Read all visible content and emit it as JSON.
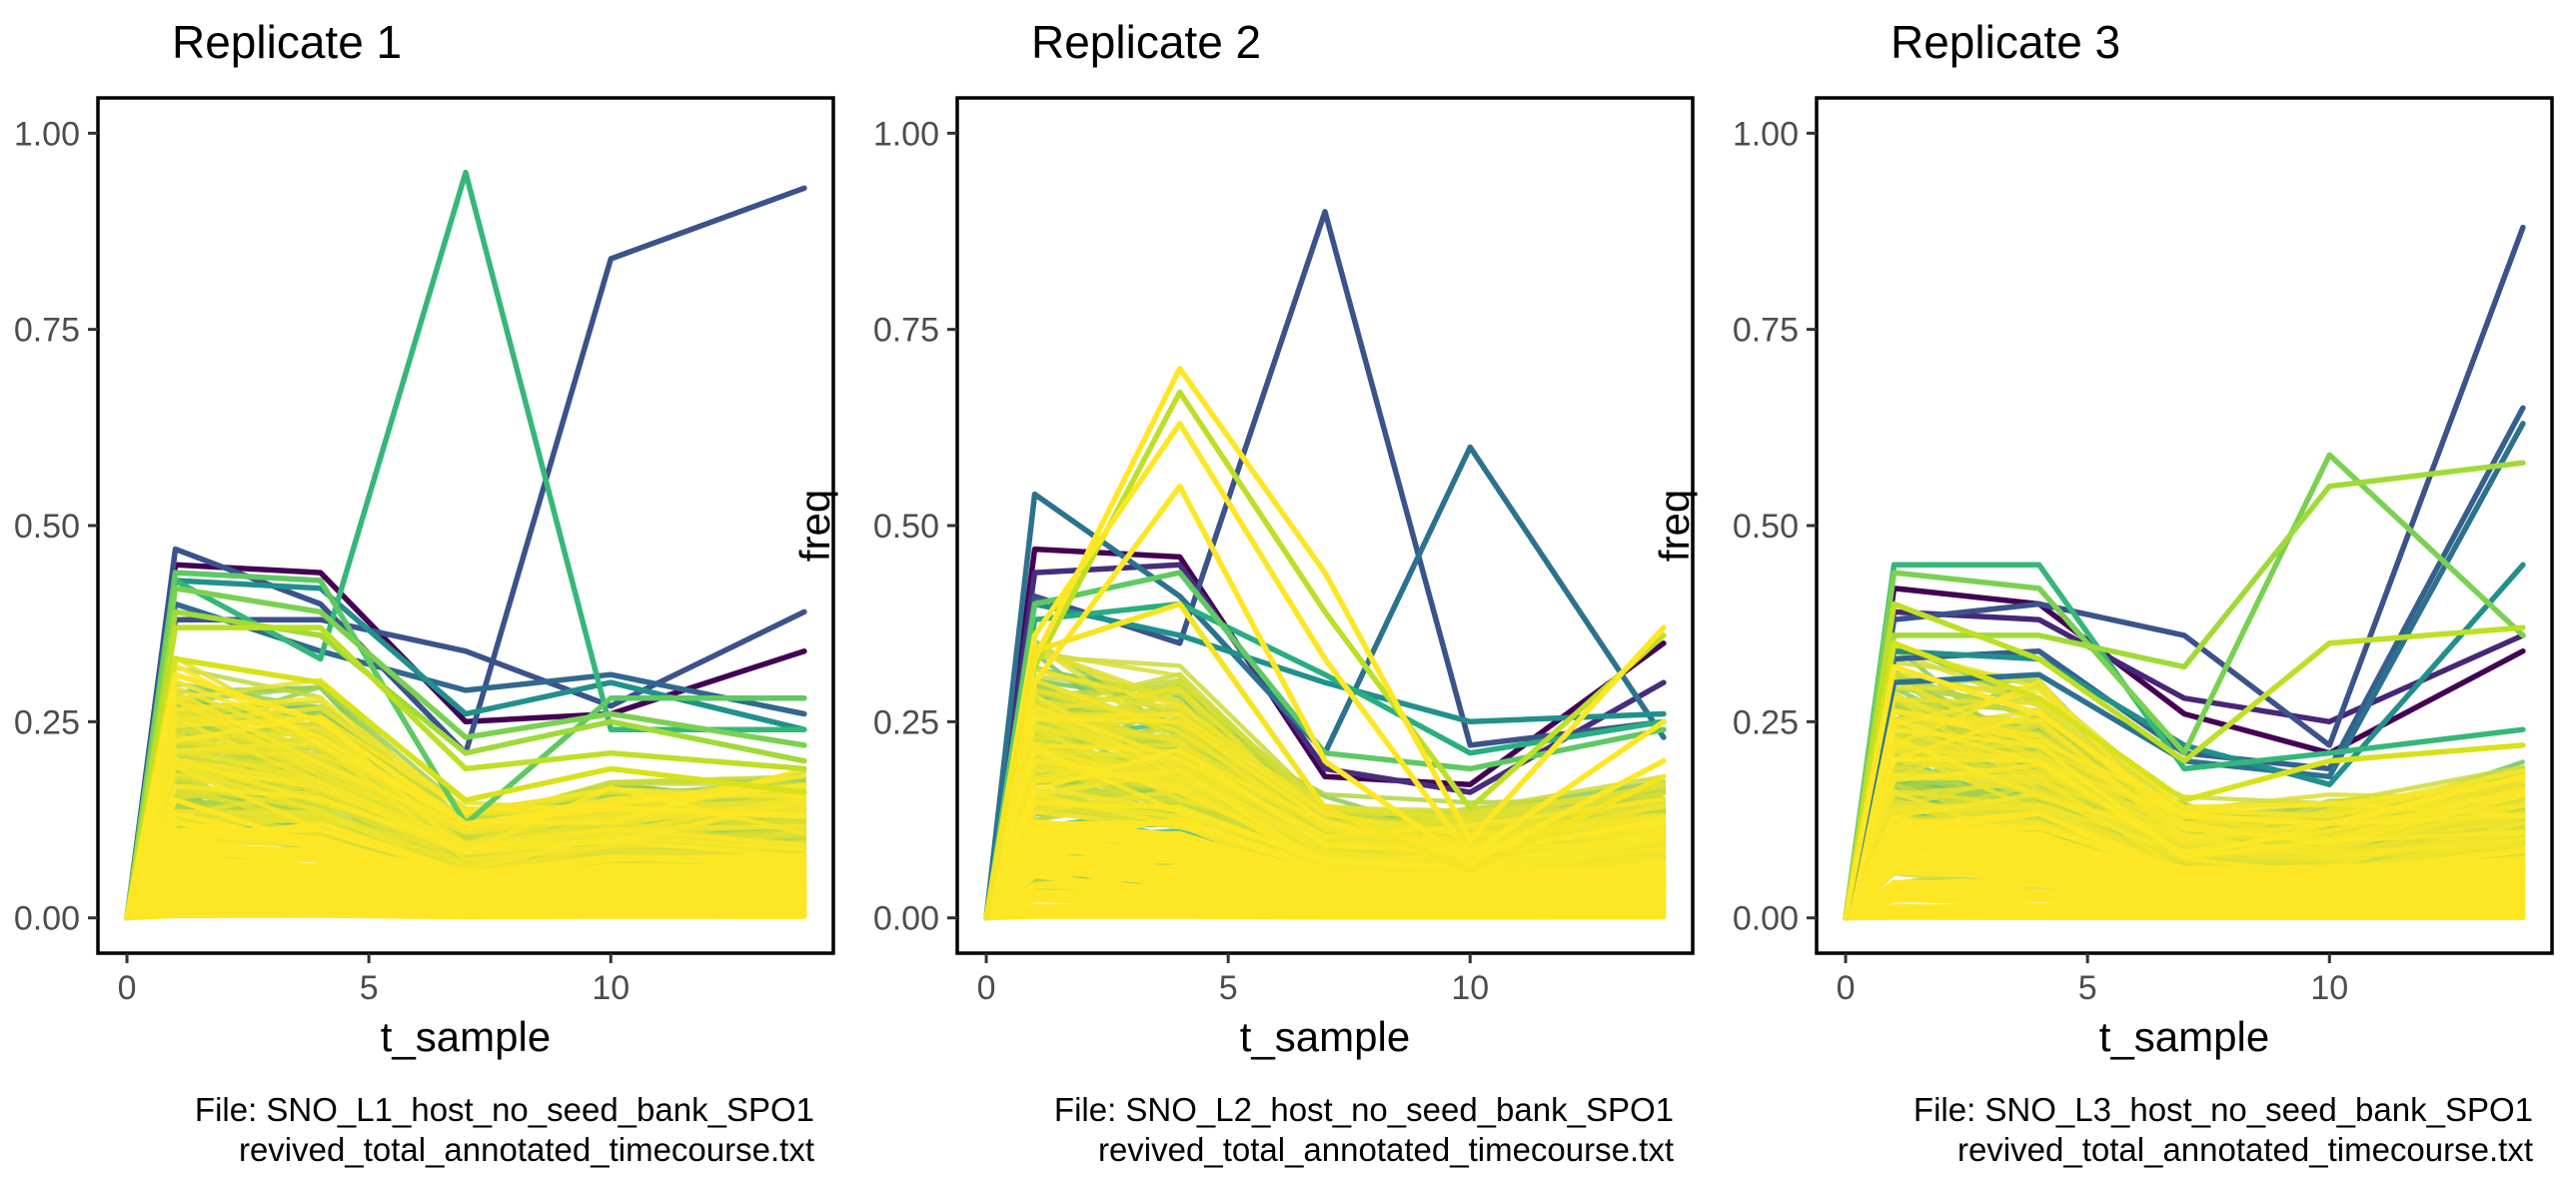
{
  "chart_data": [
    {
      "type": "line",
      "title": "Replicate 1",
      "xlabel": "t_sample",
      "ylabel": "freq",
      "caption": [
        "File: SNO_L1_host_no_seed_bank_SPO1",
        "revived_total_annotated_timecourse.txt"
      ],
      "x": [
        0,
        1,
        4,
        7,
        10,
        14
      ],
      "xlim": [
        -0.6,
        14.6
      ],
      "ylim": [
        -0.045,
        1.045
      ],
      "xticks": [
        0,
        5,
        10
      ],
      "yticks": [
        0,
        0.25,
        0.5,
        0.75,
        1
      ],
      "ytick_labels": [
        "0.00",
        "0.25",
        "0.50",
        "0.75",
        "1.00"
      ],
      "grid": false,
      "legend": "none",
      "colormap": "viridis",
      "highlighted_series": [
        {
          "color": "#440154",
          "values": [
            0,
            0.45,
            0.44,
            0.25,
            0.26,
            0.34
          ]
        },
        {
          "color": "#3b528b",
          "values": [
            0,
            0.47,
            0.4,
            0.21,
            0.84,
            0.93
          ]
        },
        {
          "color": "#3b528b",
          "values": [
            0,
            0.38,
            0.38,
            0.34,
            0.27,
            0.39
          ]
        },
        {
          "color": "#31688e",
          "values": [
            0,
            0.4,
            0.34,
            0.29,
            0.31,
            0.26
          ]
        },
        {
          "color": "#21908c",
          "values": [
            0,
            0.43,
            0.42,
            0.26,
            0.3,
            0.24
          ]
        },
        {
          "color": "#35b779",
          "values": [
            0,
            0.43,
            0.33,
            0.95,
            0.24,
            0.24
          ]
        },
        {
          "color": "#5ec962",
          "values": [
            0,
            0.44,
            0.43,
            0.12,
            0.28,
            0.28
          ]
        },
        {
          "color": "#7ad151",
          "values": [
            0,
            0.42,
            0.39,
            0.23,
            0.26,
            0.22
          ]
        },
        {
          "color": "#a0da39",
          "values": [
            0,
            0.39,
            0.36,
            0.21,
            0.25,
            0.2
          ]
        },
        {
          "color": "#bddf26",
          "values": [
            0,
            0.37,
            0.37,
            0.19,
            0.21,
            0.19
          ]
        },
        {
          "color": "#d8e219",
          "values": [
            0,
            0.33,
            0.3,
            0.15,
            0.19,
            0.16
          ]
        },
        {
          "color": "#fde725",
          "values": [
            0,
            0.31,
            0.25,
            0.12,
            0.14,
            0.13
          ]
        }
      ],
      "band": {
        "upper": [
          0,
          0.28,
          0.25,
          0.12,
          0.15,
          0.16
        ],
        "start_color": "#2fb47c",
        "end_color": "#fde725"
      },
      "background_series_count": 200,
      "seed": 11
    },
    {
      "type": "line",
      "title": "Replicate 2",
      "xlabel": "t_sample",
      "ylabel": "freq",
      "caption": [
        "File: SNO_L2_host_no_seed_bank_SPO1",
        "revived_total_annotated_timecourse.txt"
      ],
      "x": [
        0,
        1,
        4,
        7,
        10,
        14
      ],
      "xlim": [
        -0.6,
        14.6
      ],
      "ylim": [
        -0.045,
        1.045
      ],
      "xticks": [
        0,
        5,
        10
      ],
      "yticks": [
        0,
        0.25,
        0.5,
        0.75,
        1
      ],
      "ytick_labels": [
        "0.00",
        "0.25",
        "0.50",
        "0.75",
        "1.00"
      ],
      "grid": false,
      "legend": "none",
      "colormap": "viridis",
      "highlighted_series": [
        {
          "color": "#440154",
          "values": [
            0,
            0.47,
            0.46,
            0.18,
            0.17,
            0.35
          ]
        },
        {
          "color": "#472d7b",
          "values": [
            0,
            0.44,
            0.45,
            0.19,
            0.16,
            0.3
          ]
        },
        {
          "color": "#3b528b",
          "values": [
            0,
            0.41,
            0.35,
            0.9,
            0.22,
            0.25
          ]
        },
        {
          "color": "#2c728e",
          "values": [
            0,
            0.54,
            0.41,
            0.21,
            0.6,
            0.23
          ]
        },
        {
          "color": "#21908c",
          "values": [
            0,
            0.4,
            0.36,
            0.3,
            0.25,
            0.26
          ]
        },
        {
          "color": "#28ae80",
          "values": [
            0,
            0.38,
            0.4,
            0.31,
            0.21,
            0.25
          ]
        },
        {
          "color": "#5ec962",
          "values": [
            0,
            0.4,
            0.44,
            0.21,
            0.19,
            0.24
          ]
        },
        {
          "color": "#bddf26",
          "values": [
            0,
            0.32,
            0.67,
            0.39,
            0.14,
            0.36
          ]
        },
        {
          "color": "#fde725",
          "values": [
            0,
            0.33,
            0.7,
            0.44,
            0.1,
            0.37
          ]
        },
        {
          "color": "#fde725",
          "values": [
            0,
            0.36,
            0.63,
            0.33,
            0.08,
            0.25
          ]
        },
        {
          "color": "#fde725",
          "values": [
            0,
            0.3,
            0.55,
            0.2,
            0.07,
            0.2
          ]
        },
        {
          "color": "#f5e41f",
          "values": [
            0,
            0.34,
            0.4,
            0.14,
            0.06,
            0.18
          ]
        }
      ],
      "band": {
        "upper": [
          0,
          0.3,
          0.27,
          0.13,
          0.12,
          0.15
        ],
        "start_color": "#2fb47c",
        "end_color": "#fde725"
      },
      "background_series_count": 200,
      "seed": 23
    },
    {
      "type": "line",
      "title": "Replicate 3",
      "xlabel": "t_sample",
      "ylabel": "freq",
      "caption": [
        "File: SNO_L3_host_no_seed_bank_SPO1",
        "revived_total_annotated_timecourse.txt"
      ],
      "x": [
        0,
        1,
        4,
        7,
        10,
        14
      ],
      "xlim": [
        -0.6,
        14.6
      ],
      "ylim": [
        -0.045,
        1.045
      ],
      "xticks": [
        0,
        5,
        10
      ],
      "yticks": [
        0,
        0.25,
        0.5,
        0.75,
        1
      ],
      "ytick_labels": [
        "0.00",
        "0.25",
        "0.50",
        "0.75",
        "1.00"
      ],
      "grid": false,
      "legend": "none",
      "colormap": "viridis",
      "highlighted_series": [
        {
          "color": "#440154",
          "values": [
            0,
            0.42,
            0.4,
            0.26,
            0.21,
            0.34
          ]
        },
        {
          "color": "#482677",
          "values": [
            0,
            0.39,
            0.38,
            0.28,
            0.25,
            0.36
          ]
        },
        {
          "color": "#3b528b",
          "values": [
            0,
            0.38,
            0.4,
            0.36,
            0.22,
            0.88
          ]
        },
        {
          "color": "#355f8d",
          "values": [
            0,
            0.33,
            0.34,
            0.21,
            0.19,
            0.65
          ]
        },
        {
          "color": "#2c728e",
          "values": [
            0,
            0.3,
            0.31,
            0.2,
            0.18,
            0.63
          ]
        },
        {
          "color": "#21908c",
          "values": [
            0,
            0.34,
            0.33,
            0.22,
            0.17,
            0.45
          ]
        },
        {
          "color": "#35b779",
          "values": [
            0,
            0.45,
            0.45,
            0.19,
            0.21,
            0.24
          ]
        },
        {
          "color": "#7ad151",
          "values": [
            0,
            0.44,
            0.42,
            0.21,
            0.59,
            0.36
          ]
        },
        {
          "color": "#a0da39",
          "values": [
            0,
            0.36,
            0.36,
            0.32,
            0.55,
            0.58
          ]
        },
        {
          "color": "#bddf26",
          "values": [
            0,
            0.4,
            0.33,
            0.2,
            0.35,
            0.37
          ]
        },
        {
          "color": "#d8e219",
          "values": [
            0,
            0.35,
            0.28,
            0.15,
            0.2,
            0.22
          ]
        },
        {
          "color": "#fde725",
          "values": [
            0,
            0.32,
            0.26,
            0.13,
            0.12,
            0.18
          ]
        }
      ],
      "band": {
        "upper": [
          0,
          0.29,
          0.26,
          0.13,
          0.13,
          0.17
        ],
        "start_color": "#2fb47c",
        "end_color": "#fde725"
      },
      "background_series_count": 200,
      "seed": 37
    }
  ]
}
